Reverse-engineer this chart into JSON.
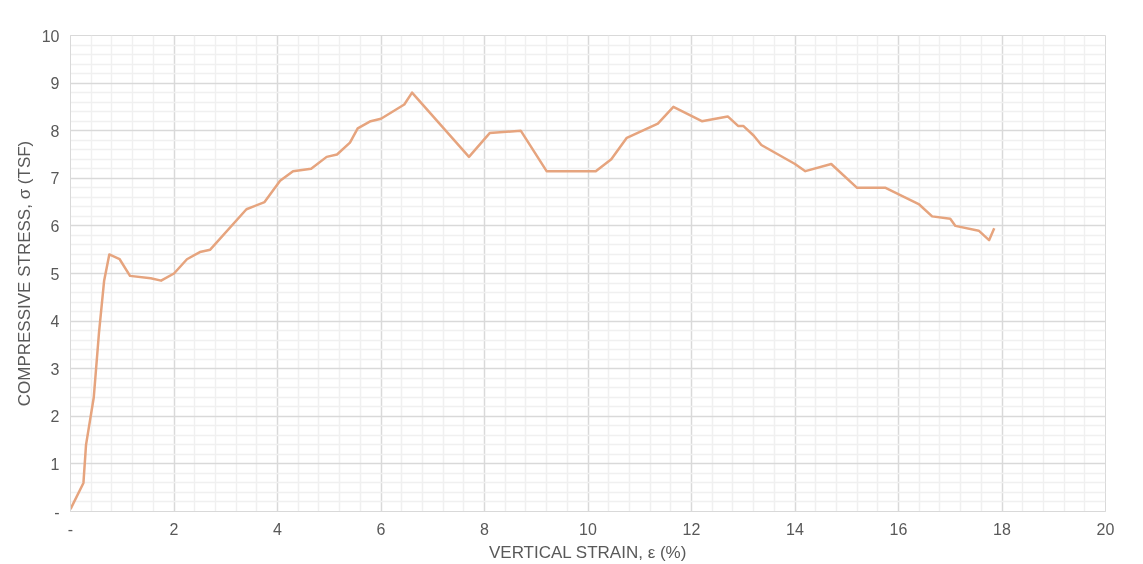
{
  "chart_data": {
    "type": "line",
    "xlabel": "VERTICAL STRAIN, ε (%)",
    "ylabel": "COMPRESSIVE STRESS, σ (TSF)",
    "x": [
      0,
      0.25,
      0.3,
      0.45,
      0.55,
      0.65,
      0.75,
      0.95,
      1.15,
      1.55,
      1.75,
      2.0,
      2.25,
      2.5,
      2.7,
      3.4,
      3.75,
      4.05,
      4.3,
      4.65,
      4.95,
      5.15,
      5.4,
      5.55,
      5.8,
      6.0,
      6.45,
      6.6,
      7.7,
      8.1,
      8.7,
      9.2,
      10.15,
      10.45,
      10.75,
      11.35,
      11.65,
      12.2,
      12.7,
      12.9,
      13.0,
      13.2,
      13.35,
      14.0,
      14.2,
      14.7,
      15.2,
      15.75,
      16.4,
      16.65,
      17.0,
      17.1,
      17.55,
      17.75,
      17.85
    ],
    "series": [
      {
        "color": "#e6a47e",
        "values": [
          0.05,
          0.6,
          1.4,
          2.4,
          3.75,
          4.85,
          5.4,
          5.3,
          4.95,
          4.9,
          4.85,
          5.0,
          5.3,
          5.45,
          5.5,
          6.35,
          6.5,
          6.95,
          7.15,
          7.2,
          7.45,
          7.5,
          7.75,
          8.05,
          8.2,
          8.25,
          8.55,
          8.8,
          7.45,
          7.95,
          8.0,
          7.15,
          7.15,
          7.4,
          7.85,
          8.15,
          8.5,
          8.2,
          8.3,
          8.1,
          8.1,
          7.9,
          7.7,
          7.3,
          7.15,
          7.3,
          6.8,
          6.8,
          6.45,
          6.2,
          6.15,
          6.0,
          5.9,
          5.7,
          5.95
        ]
      }
    ],
    "xlim": [
      0,
      20
    ],
    "ylim": [
      0,
      10
    ],
    "xticks": [
      {
        "value": 0,
        "label": "-"
      },
      2,
      4,
      6,
      8,
      10,
      12,
      14,
      16,
      18,
      20
    ],
    "yticks": [
      {
        "value": 0,
        "label": "-"
      },
      1,
      2,
      3,
      4,
      5,
      6,
      7,
      8,
      9,
      10
    ],
    "grid": true,
    "marker": "none",
    "line_style": "solid"
  }
}
